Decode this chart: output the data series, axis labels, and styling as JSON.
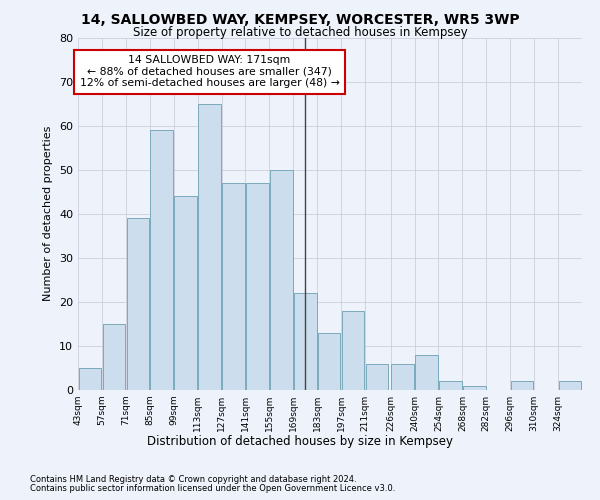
{
  "title": "14, SALLOWBED WAY, KEMPSEY, WORCESTER, WR5 3WP",
  "subtitle": "Size of property relative to detached houses in Kempsey",
  "xlabel": "Distribution of detached houses by size in Kempsey",
  "ylabel": "Number of detached properties",
  "bar_color": "#ccdded",
  "bar_edge_color": "#7aaabb",
  "background_color": "#eef2fa",
  "grid_color": "#c8c8d8",
  "annotation_line_color": "#444444",
  "property_line_x": 169,
  "annotation_text": "14 SALLOWBED WAY: 171sqm\n← 88% of detached houses are smaller (347)\n12% of semi-detached houses are larger (48) →",
  "annotation_box_color": "white",
  "annotation_box_edge": "#cc0000",
  "bins": [
    43,
    57,
    71,
    85,
    99,
    113,
    127,
    141,
    155,
    169,
    183,
    197,
    211,
    226,
    240,
    254,
    268,
    282,
    296,
    310,
    324
  ],
  "bin_labels": [
    "43sqm",
    "57sqm",
    "71sqm",
    "85sqm",
    "99sqm",
    "113sqm",
    "127sqm",
    "141sqm",
    "155sqm",
    "169sqm",
    "183sqm",
    "197sqm",
    "211sqm",
    "226sqm",
    "240sqm",
    "254sqm",
    "268sqm",
    "282sqm",
    "296sqm",
    "310sqm",
    "324sqm"
  ],
  "values": [
    5,
    15,
    39,
    59,
    44,
    65,
    47,
    47,
    50,
    22,
    13,
    18,
    6,
    6,
    8,
    2,
    1,
    0,
    2,
    0,
    2
  ],
  "ylim": [
    0,
    80
  ],
  "yticks": [
    0,
    10,
    20,
    30,
    40,
    50,
    60,
    70,
    80
  ],
  "footnote1": "Contains HM Land Registry data © Crown copyright and database right 2024.",
  "footnote2": "Contains public sector information licensed under the Open Government Licence v3.0."
}
